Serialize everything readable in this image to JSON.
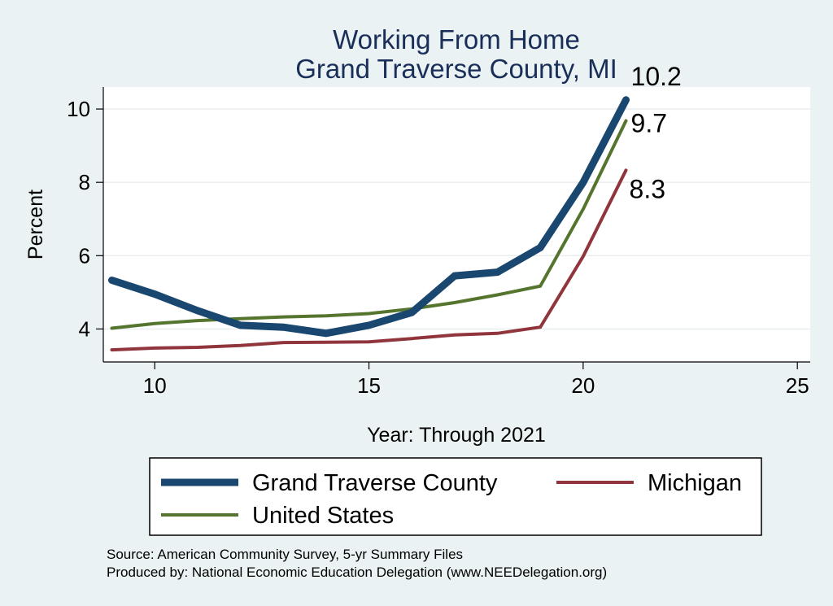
{
  "chart_data": {
    "type": "line",
    "title": [
      "Working From Home",
      "Grand Traverse County, MI"
    ],
    "xlabel": "Year: Through 2021",
    "ylabel": "Percent",
    "xlim": [
      8.8,
      25.3
    ],
    "ylim": [
      3.1,
      10.6
    ],
    "xticks": [
      10,
      15,
      20,
      25
    ],
    "yticks": [
      4,
      6,
      8,
      10
    ],
    "grid": "horizontal",
    "legend_position": "bottom",
    "x": [
      9,
      10,
      11,
      12,
      13,
      14,
      15,
      16,
      17,
      18,
      19,
      20,
      21
    ],
    "series": [
      {
        "name": "Grand Traverse County",
        "color": "#1a476f",
        "values": [
          5.33,
          4.95,
          4.5,
          4.1,
          4.05,
          3.88,
          4.1,
          4.45,
          5.45,
          5.55,
          6.22,
          8.0,
          10.25
        ],
        "end_label": "10.2"
      },
      {
        "name": "Michigan",
        "color": "#90353b",
        "values": [
          3.43,
          3.48,
          3.5,
          3.55,
          3.63,
          3.64,
          3.65,
          3.74,
          3.84,
          3.88,
          4.05,
          5.98,
          8.33
        ],
        "end_label": "8.3"
      },
      {
        "name": "United States",
        "color": "#55752f",
        "values": [
          4.02,
          4.15,
          4.23,
          4.28,
          4.33,
          4.36,
          4.42,
          4.55,
          4.72,
          4.93,
          5.17,
          7.27,
          9.68
        ],
        "end_label": "9.7"
      }
    ],
    "source_lines": [
      "Source: American Community Survey, 5-yr Summary Files",
      "Produced by: National Economic Education Delegation (www.NEEDelegation.org)"
    ]
  }
}
